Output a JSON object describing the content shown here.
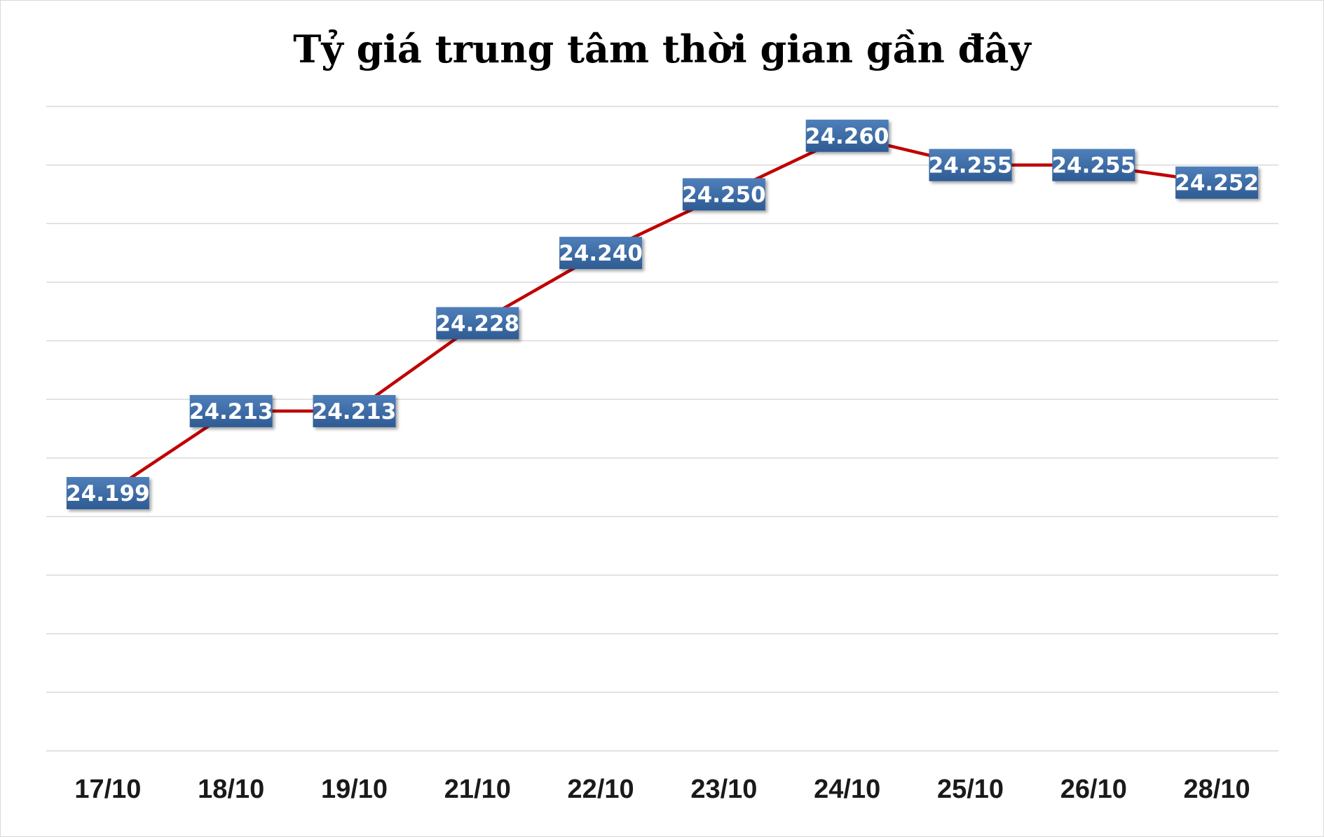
{
  "chart_data": {
    "type": "line",
    "title": "Tỷ giá trung tâm thời gian gần đây",
    "xlabel": "",
    "ylabel": "",
    "categories": [
      "17/10",
      "18/10",
      "19/10",
      "21/10",
      "22/10",
      "23/10",
      "24/10",
      "25/10",
      "26/10",
      "28/10"
    ],
    "series": [
      {
        "values": [
          24199,
          24213,
          24213,
          24228,
          24240,
          24250,
          24260,
          24255,
          24255,
          24252
        ],
        "labels": [
          "24.199",
          "24.213",
          "24.213",
          "24.228",
          "24.240",
          "24.250",
          "24.260",
          "24.255",
          "24.255",
          "24.252"
        ],
        "color": "#c00000"
      }
    ],
    "ylim": [
      24155,
      24265
    ],
    "y_tick_step": 10,
    "y_axis_labels_shown": false,
    "grid": true,
    "legend": "none",
    "colors": {
      "line": "#c00000",
      "label_fill_top": "#4f7fba",
      "label_fill_bottom": "#2e5b93",
      "grid": "#d9d9d9"
    }
  }
}
